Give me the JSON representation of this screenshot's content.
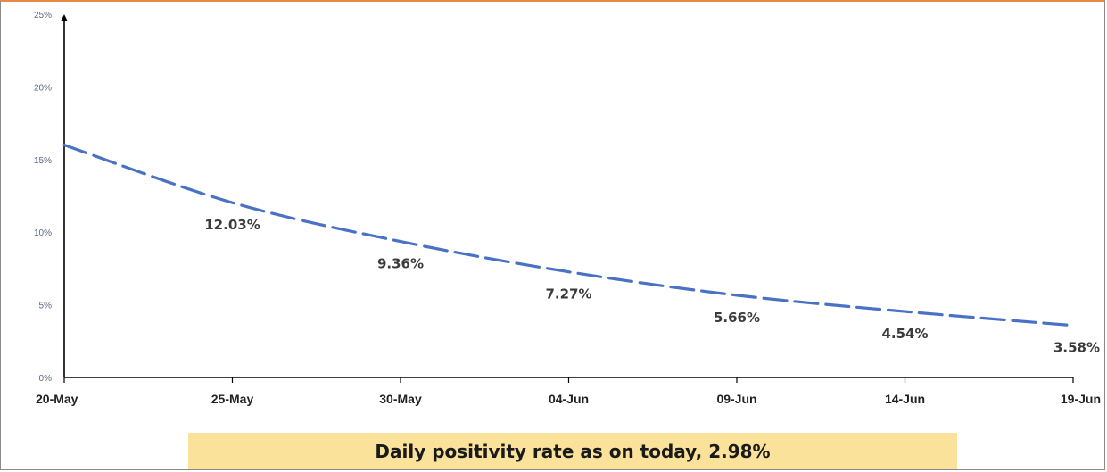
{
  "chart_data": {
    "type": "line",
    "x": [
      "20-May",
      "25-May",
      "30-May",
      "04-Jun",
      "09-Jun",
      "14-Jun",
      "19-Jun"
    ],
    "series": [
      {
        "values": [
          16.0,
          12.03,
          9.36,
          7.27,
          5.66,
          4.54,
          3.58
        ],
        "color": "#4a72c4",
        "line_style": "dashed"
      }
    ],
    "data_labels": [
      "",
      "12.03%",
      "9.36%",
      "7.27%",
      "5.66%",
      "4.54%",
      "3.58%"
    ],
    "yticks": [
      "0%",
      "5%",
      "10%",
      "15%",
      "20%",
      "25%"
    ],
    "ylim": [
      0,
      25
    ],
    "grid": false,
    "title": "",
    "xlabel": "",
    "ylabel": ""
  },
  "banner": {
    "text": "Daily positivity rate as on today, 2.98%",
    "background": "#fbe29a"
  },
  "colors": {
    "frame_top": "#e58b4a",
    "axis": "#000000"
  }
}
